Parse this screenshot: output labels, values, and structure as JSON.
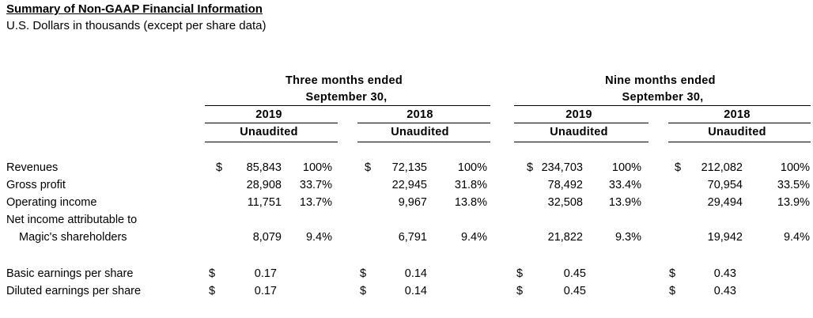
{
  "title": "Summary of Non-GAAP Financial Information",
  "subtitle": "U.S. Dollars in thousands (except per share data)",
  "periods": [
    {
      "line1": "Three months ended",
      "line2": "September 30,"
    },
    {
      "line1": "Nine months ended",
      "line2": "September 30,"
    }
  ],
  "columns": [
    {
      "year": "2019",
      "status": "Unaudited"
    },
    {
      "year": "2018",
      "status": "Unaudited"
    },
    {
      "year": "2019",
      "status": "Unaudited"
    },
    {
      "year": "2018",
      "status": "Unaudited"
    }
  ],
  "rows": {
    "revenues": {
      "label": "Revenues",
      "cols": [
        {
          "cur": "$",
          "value": "85,843",
          "pct": "100%"
        },
        {
          "cur": "$",
          "value": "72,135",
          "pct": "100%"
        },
        {
          "cur": "$",
          "value": "234,703",
          "pct": "100%"
        },
        {
          "cur": "$",
          "value": "212,082",
          "pct": "100%"
        }
      ]
    },
    "gross_profit": {
      "label": "Gross profit",
      "cols": [
        {
          "value": "28,908",
          "pct": "33.7%"
        },
        {
          "value": "22,945",
          "pct": "31.8%"
        },
        {
          "value": "78,492",
          "pct": "33.4%"
        },
        {
          "value": "70,954",
          "pct": "33.5%"
        }
      ]
    },
    "operating_income": {
      "label": "Operating income",
      "cols": [
        {
          "value": "11,751",
          "pct": "13.7%"
        },
        {
          "value": "9,967",
          "pct": "13.8%"
        },
        {
          "value": "32,508",
          "pct": "13.9%"
        },
        {
          "value": "29,494",
          "pct": "13.9%"
        }
      ]
    },
    "net_income": {
      "label_line1": "Net income attributable to",
      "label_line2": "Magic's shareholders",
      "cols": [
        {
          "value": "8,079",
          "pct": "9.4%"
        },
        {
          "value": "6,791",
          "pct": "9.4%"
        },
        {
          "value": "21,822",
          "pct": "9.3%"
        },
        {
          "value": "19,942",
          "pct": "9.4%"
        }
      ]
    },
    "basic_eps": {
      "label": "Basic earnings per share",
      "cols": [
        {
          "cur": "$",
          "value": "0.17"
        },
        {
          "cur": "$",
          "value": "0.14"
        },
        {
          "cur": "$",
          "value": "0.45"
        },
        {
          "cur": "$",
          "value": "0.43"
        }
      ]
    },
    "diluted_eps": {
      "label": "Diluted earnings per share",
      "cols": [
        {
          "cur": "$",
          "value": "0.17"
        },
        {
          "cur": "$",
          "value": "0.14"
        },
        {
          "cur": "$",
          "value": "0.45"
        },
        {
          "cur": "$",
          "value": "0.43"
        }
      ]
    }
  }
}
